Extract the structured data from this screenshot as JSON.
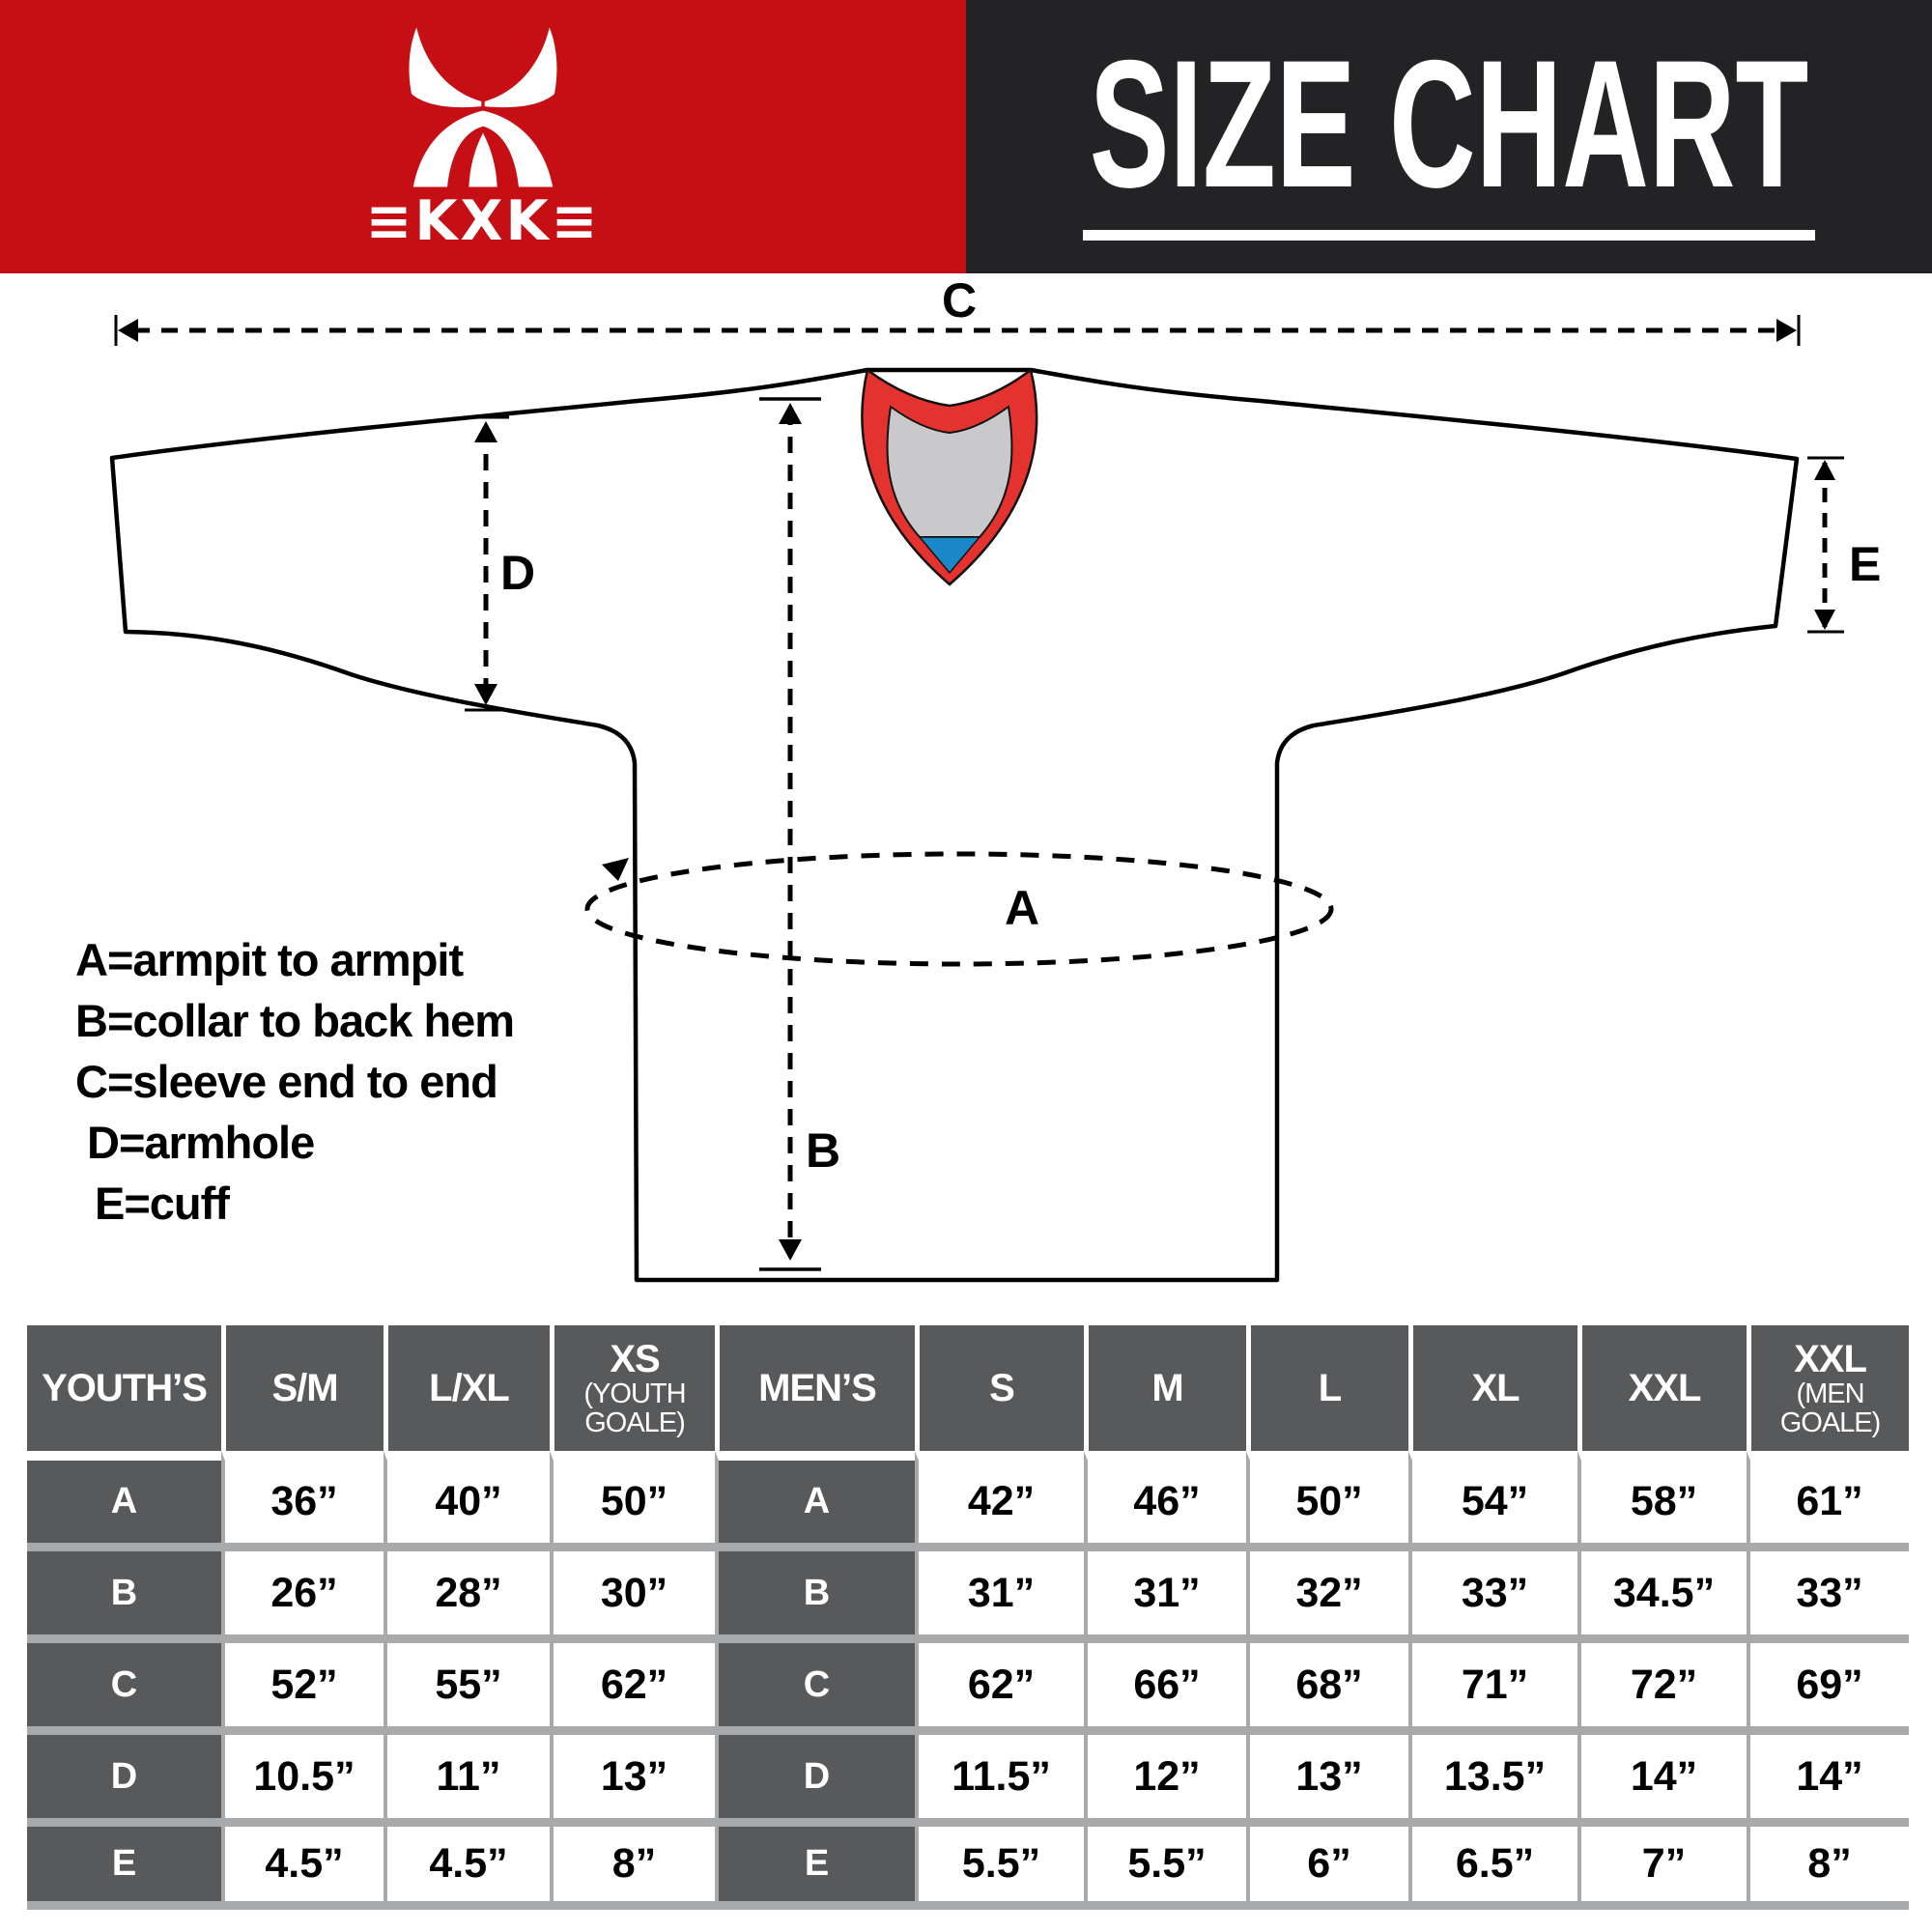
{
  "header": {
    "wordmark": "≡KXK≡",
    "title": "SIZE CHART",
    "colors": {
      "red": "#c50f14",
      "black": "#232325"
    }
  },
  "diagram": {
    "measure_labels": {
      "A": "A",
      "B": "B",
      "C": "C",
      "D": "D",
      "E": "E"
    },
    "legend": [
      "A=armpit to armpit",
      "B=collar to back hem",
      "C=sleeve end to end",
      "D=armhole",
      "E=cuff"
    ],
    "collar_colors": {
      "red": "#e4322f",
      "gray": "#c9c9cb",
      "blue": "#1a87c9"
    }
  },
  "size_table": {
    "colors": {
      "header_bg": "#58595b",
      "grid": "#a8a9ab",
      "value_text": "#000000"
    },
    "youth": {
      "label": "YOUTH’S",
      "columns": [
        {
          "name": "S/M",
          "note": ""
        },
        {
          "name": "L/XL",
          "note": ""
        },
        {
          "name": "XS",
          "note": "(YOUTH GOALE)"
        }
      ]
    },
    "men": {
      "label": "MEN’S",
      "columns": [
        {
          "name": "S",
          "note": ""
        },
        {
          "name": "M",
          "note": ""
        },
        {
          "name": "L",
          "note": ""
        },
        {
          "name": "XL",
          "note": ""
        },
        {
          "name": "XXL",
          "note": ""
        },
        {
          "name": "XXL",
          "note": "(MEN GOALE)"
        }
      ]
    },
    "rows": [
      {
        "label": "A",
        "youth": [
          "36”",
          "40”",
          "50”"
        ],
        "men": [
          "42”",
          "46”",
          "50”",
          "54”",
          "58”",
          "61”"
        ]
      },
      {
        "label": "B",
        "youth": [
          "26”",
          "28”",
          "30”"
        ],
        "men": [
          "31”",
          "31”",
          "32”",
          "33”",
          "34.5”",
          "33”"
        ]
      },
      {
        "label": "C",
        "youth": [
          "52”",
          "55”",
          "62”"
        ],
        "men": [
          "62”",
          "66”",
          "68”",
          "71”",
          "72”",
          "69”"
        ]
      },
      {
        "label": "D",
        "youth": [
          "10.5”",
          "11”",
          "13”"
        ],
        "men": [
          "11.5”",
          "12”",
          "13”",
          "13.5”",
          "14”",
          "14”"
        ]
      },
      {
        "label": "E",
        "youth": [
          "4.5”",
          "4.5”",
          "8”"
        ],
        "men": [
          "5.5”",
          "5.5”",
          "6”",
          "6.5”",
          "7”",
          "8”"
        ]
      }
    ]
  }
}
